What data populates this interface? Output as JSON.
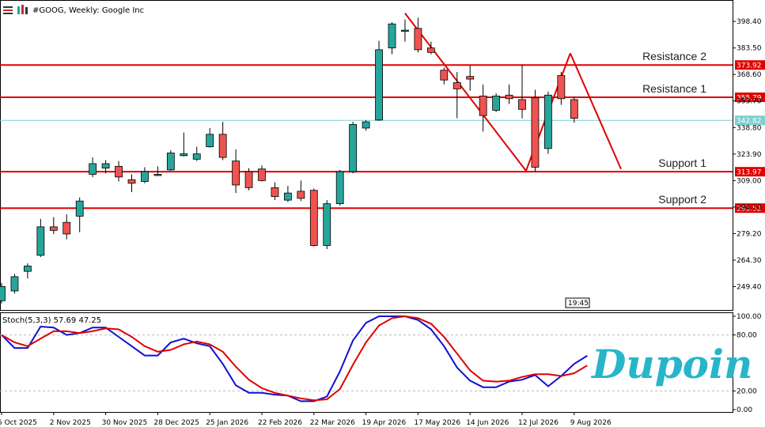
{
  "header": {
    "title": "#GOOG, Weekly:  Google Inc",
    "stoch_label": "Stoch(5,3,3) 57.69 47.25",
    "time_tag": "19:45"
  },
  "brand": {
    "name": "Dupoin",
    "color": "#27b5c9"
  },
  "colors": {
    "bull": "#26a69a",
    "bear": "#ef5350",
    "level": "#e00000",
    "current": "#7fcfcf",
    "stoch_main": "#1010d0",
    "stoch_signal": "#e00000",
    "grid": "#bbbbbb"
  },
  "chart_data": [
    {
      "type": "candlestick",
      "title": "#GOOG, Weekly:  Google Inc",
      "yticks": [
        "398.40",
        "383.50",
        "368.60",
        "353.70",
        "338.80",
        "323.90",
        "309.00",
        "294.10",
        "279.20",
        "264.30",
        "249.40"
      ],
      "ylim": [
        236.3,
        410.0
      ],
      "xticks": [
        "5 Oct 2025",
        "2 Nov 2025",
        "30 Nov 2025",
        "28 Dec 2025",
        "25 Jan 2026",
        "22 Feb 2026",
        "22 Mar 2026",
        "19 Apr 2026",
        "17 May 2026",
        "14 Jun 2026",
        "12 Jul 2026",
        "9 Aug 2026"
      ],
      "candles": [
        {
          "o": 241.5,
          "h": 251.5,
          "l": 240.0,
          "c": 249.5
        },
        {
          "o": 247.0,
          "h": 256.5,
          "l": 245.5,
          "c": 255.0
        },
        {
          "o": 258.0,
          "h": 262.5,
          "l": 254.0,
          "c": 261.0
        },
        {
          "o": 267.0,
          "h": 287.5,
          "l": 266.0,
          "c": 283.0
        },
        {
          "o": 283.0,
          "h": 288.5,
          "l": 279.0,
          "c": 281.0
        },
        {
          "o": 285.5,
          "h": 290.0,
          "l": 276.0,
          "c": 279.0
        },
        {
          "o": 289.0,
          "h": 299.5,
          "l": 280.0,
          "c": 297.5
        },
        {
          "o": 312.5,
          "h": 322.0,
          "l": 311.0,
          "c": 318.5
        },
        {
          "o": 316.0,
          "h": 320.5,
          "l": 313.0,
          "c": 318.5
        },
        {
          "o": 317.0,
          "h": 320.0,
          "l": 308.5,
          "c": 311.0
        },
        {
          "o": 309.5,
          "h": 312.5,
          "l": 302.5,
          "c": 307.5
        },
        {
          "o": 308.5,
          "h": 316.5,
          "l": 307.5,
          "c": 314.0
        },
        {
          "o": 312.0,
          "h": 317.0,
          "l": 311.5,
          "c": 312.5
        },
        {
          "o": 315.0,
          "h": 326.0,
          "l": 314.5,
          "c": 324.5
        },
        {
          "o": 323.0,
          "h": 336.0,
          "l": 322.5,
          "c": 324.0
        },
        {
          "o": 321.0,
          "h": 328.0,
          "l": 320.0,
          "c": 324.0
        },
        {
          "o": 328.0,
          "h": 338.5,
          "l": 327.5,
          "c": 335.0
        },
        {
          "o": 335.0,
          "h": 342.0,
          "l": 320.5,
          "c": 322.0
        },
        {
          "o": 320.0,
          "h": 326.5,
          "l": 302.0,
          "c": 306.5
        },
        {
          "o": 314.0,
          "h": 316.0,
          "l": 303.5,
          "c": 305.0
        },
        {
          "o": 315.5,
          "h": 317.5,
          "l": 308.5,
          "c": 309.0
        },
        {
          "o": 305.0,
          "h": 308.0,
          "l": 298.0,
          "c": 300.0
        },
        {
          "o": 298.0,
          "h": 306.0,
          "l": 297.0,
          "c": 302.0
        },
        {
          "o": 303.0,
          "h": 309.0,
          "l": 297.5,
          "c": 299.0
        },
        {
          "o": 303.5,
          "h": 304.5,
          "l": 272.0,
          "c": 272.5
        },
        {
          "o": 272.5,
          "h": 298.0,
          "l": 270.5,
          "c": 296.0
        },
        {
          "o": 296.0,
          "h": 315.0,
          "l": 295.0,
          "c": 314.0
        },
        {
          "o": 314.0,
          "h": 342.0,
          "l": 313.0,
          "c": 340.5
        },
        {
          "o": 338.5,
          "h": 343.0,
          "l": 337.0,
          "c": 342.0
        },
        {
          "o": 343.0,
          "h": 387.5,
          "l": 342.5,
          "c": 382.5
        },
        {
          "o": 383.5,
          "h": 398.0,
          "l": 380.0,
          "c": 397.0
        },
        {
          "o": 393.0,
          "h": 399.5,
          "l": 387.0,
          "c": 393.5
        },
        {
          "o": 394.5,
          "h": 400.5,
          "l": 381.0,
          "c": 382.5
        },
        {
          "o": 383.5,
          "h": 387.0,
          "l": 380.0,
          "c": 381.0
        },
        {
          "o": 371.0,
          "h": 372.5,
          "l": 363.0,
          "c": 365.5
        },
        {
          "o": 364.0,
          "h": 370.0,
          "l": 344.0,
          "c": 360.5
        },
        {
          "o": 367.5,
          "h": 373.5,
          "l": 359.5,
          "c": 366.0
        },
        {
          "o": 356.5,
          "h": 363.0,
          "l": 336.5,
          "c": 345.5
        },
        {
          "o": 348.5,
          "h": 358.0,
          "l": 347.5,
          "c": 356.5
        },
        {
          "o": 357.0,
          "h": 363.0,
          "l": 352.0,
          "c": 355.0
        },
        {
          "o": 354.5,
          "h": 374.0,
          "l": 344.0,
          "c": 349.0
        },
        {
          "o": 355.5,
          "h": 360.0,
          "l": 314.0,
          "c": 316.5
        },
        {
          "o": 327.0,
          "h": 359.0,
          "l": 324.0,
          "c": 357.0
        },
        {
          "o": 368.0,
          "h": 370.0,
          "l": 351.5,
          "c": 355.0
        },
        {
          "o": 354.5,
          "h": 356.0,
          "l": 341.5,
          "c": 344.0
        }
      ],
      "levels": [
        {
          "name": "Resistance 2",
          "value": 373.92,
          "tag": "373.92"
        },
        {
          "name": "Resistance 1",
          "value": 355.79,
          "tag": "355.79"
        },
        {
          "name": "Support 1",
          "value": 313.97,
          "tag": "313.97"
        },
        {
          "name": "Support 2",
          "value": 293.52,
          "tag": "293.52"
        }
      ],
      "current_price": {
        "value": 342.82,
        "tag": "342.82"
      },
      "trendlines": [
        {
          "x1": 31.0,
          "y1": 403.0,
          "x2": 40.3,
          "y2": 314.5
        },
        {
          "x1": 40.3,
          "y1": 314.5,
          "x2": 43.7,
          "y2": 380.5
        },
        {
          "x1": 43.7,
          "y1": 380.5,
          "x2": 47.6,
          "y2": 315.5
        }
      ]
    },
    {
      "type": "line",
      "title": "Stoch(5,3,3) 57.69 47.25",
      "yticks": [
        "100.00",
        "80.00",
        "20.00",
        "0.00"
      ],
      "ylim": [
        0,
        100
      ],
      "levels": [
        80,
        20
      ],
      "series": [
        {
          "name": "57.69",
          "values": [
            80,
            66,
            66,
            89,
            88,
            80,
            82,
            88,
            88,
            78,
            68,
            58,
            58,
            72,
            76,
            71,
            68,
            49,
            26,
            18,
            18,
            16,
            15,
            9,
            9,
            14,
            41,
            74,
            93,
            100,
            100,
            100,
            96,
            86,
            68,
            45,
            31,
            24,
            24,
            30,
            32,
            37,
            25,
            36,
            49,
            57.69
          ]
        },
        {
          "name": "47.25",
          "values": [
            80,
            72,
            68,
            76,
            84,
            84,
            82,
            84,
            87,
            86,
            78,
            68,
            62,
            64,
            70,
            73,
            70,
            62,
            46,
            32,
            23,
            18,
            15,
            12,
            10,
            11,
            22,
            48,
            72,
            90,
            98,
            100,
            98,
            92,
            78,
            60,
            42,
            31,
            30,
            31,
            35,
            38,
            38,
            36,
            39,
            47.25
          ]
        }
      ]
    }
  ]
}
